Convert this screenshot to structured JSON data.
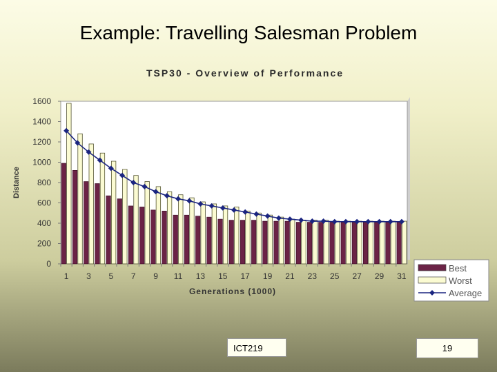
{
  "slide": {
    "title": "Example: Travelling Salesman Problem",
    "footer_left": "ICT219",
    "footer_right": "19"
  },
  "chart_data": {
    "type": "bar",
    "title": "TSP30 - Overview of Performance",
    "xlabel": "Generations (1000)",
    "ylabel": "Distance",
    "ylim": [
      0,
      1600
    ],
    "yticks": [
      0,
      200,
      400,
      600,
      800,
      1000,
      1200,
      1400,
      1600
    ],
    "x": [
      1,
      2,
      3,
      4,
      5,
      6,
      7,
      8,
      9,
      10,
      11,
      12,
      13,
      14,
      15,
      16,
      17,
      18,
      19,
      20,
      21,
      22,
      23,
      24,
      25,
      26,
      27,
      28,
      29,
      30,
      31
    ],
    "x_tick_labels": [
      "1",
      "3",
      "5",
      "7",
      "9",
      "11",
      "13",
      "15",
      "17",
      "19",
      "21",
      "23",
      "25",
      "27",
      "29",
      "31"
    ],
    "grid": false,
    "legend_position": "right-bottom",
    "series": [
      {
        "name": "Best",
        "type": "bar",
        "color": "#6b2346",
        "values": [
          990,
          920,
          810,
          790,
          670,
          640,
          570,
          560,
          530,
          520,
          480,
          480,
          470,
          460,
          440,
          430,
          430,
          430,
          420,
          420,
          420,
          410,
          410,
          410,
          410,
          410,
          410,
          410,
          410,
          410,
          410
        ]
      },
      {
        "name": "Worst",
        "type": "bar",
        "color": "#fbfbd2",
        "values": [
          1580,
          1280,
          1180,
          1090,
          1010,
          930,
          870,
          810,
          760,
          710,
          680,
          650,
          610,
          590,
          570,
          560,
          520,
          500,
          480,
          460,
          440,
          430,
          430,
          430,
          420,
          420,
          420,
          420,
          420,
          420,
          420
        ]
      },
      {
        "name": "Average",
        "type": "line",
        "color": "#1b2580",
        "values": [
          1310,
          1190,
          1100,
          1020,
          940,
          870,
          800,
          760,
          710,
          670,
          640,
          620,
          590,
          570,
          550,
          530,
          510,
          490,
          470,
          450,
          440,
          430,
          420,
          420,
          415,
          415,
          415,
          415,
          415,
          415,
          415
        ]
      }
    ]
  }
}
